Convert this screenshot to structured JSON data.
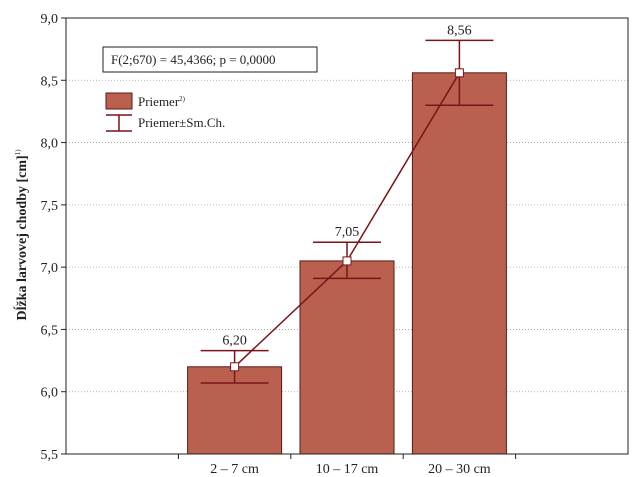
{
  "chart_data": {
    "type": "bar",
    "categories": [
      "2 – 7 cm",
      "10 – 17 cm",
      "20 – 30 cm"
    ],
    "values": [
      6.2,
      7.05,
      8.56
    ],
    "value_labels": [
      "6,20",
      "7,05",
      "8,56"
    ],
    "error_low": [
      6.07,
      6.91,
      8.3
    ],
    "error_high": [
      6.33,
      7.2,
      8.82
    ],
    "ylabel": "Dĺžka larvovej chodby [cm]",
    "ylabel_sup": "1)",
    "ylim": [
      5.5,
      9.0
    ],
    "yticks": [
      5.5,
      6.0,
      6.5,
      7.0,
      7.5,
      8.0,
      8.5,
      9.0
    ],
    "ytick_labels": [
      "5,5",
      "6,0",
      "6,5",
      "7,0",
      "7,5",
      "8,0",
      "8,5",
      "9,0"
    ],
    "grid": "horizontal-dotted",
    "stat_annotation": "F(2;670) = 45,4366; p = 0,0000",
    "legend": {
      "placement": "top-left",
      "bar_label": "Priemer",
      "bar_label_sup": "2)",
      "error_label": "Priemer±Sm.Ch."
    },
    "colors": {
      "bar_fill": "#b9604f",
      "bar_stroke": "#5a1a14",
      "line": "#7a1418",
      "grid": "#999999"
    }
  }
}
